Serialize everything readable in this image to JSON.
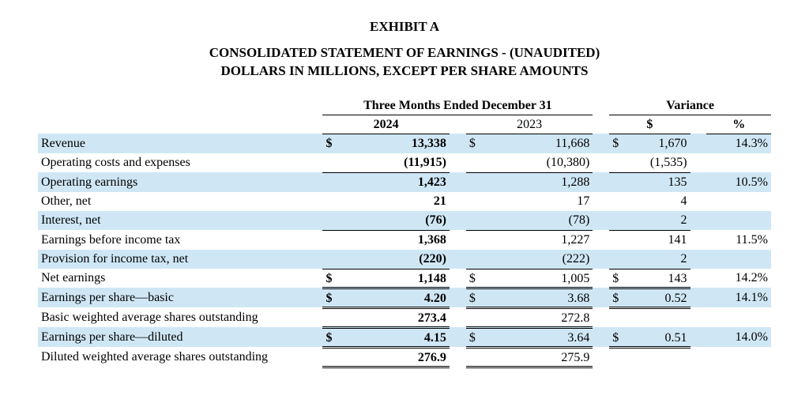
{
  "exhibit": "EXHIBIT A",
  "title_line1": "CONSOLIDATED STATEMENT OF EARNINGS - (UNAUDITED)",
  "title_line2": "DOLLARS IN MILLIONS, EXCEPT PER SHARE AMOUNTS",
  "group_header": "Three Months Ended December 31",
  "variance_header": "Variance",
  "col_2024": "2024",
  "col_2023": "2023",
  "col_var_dollar": "$",
  "col_var_pct": "%",
  "rows": {
    "revenue": {
      "label": "Revenue",
      "cur1": "$",
      "v1": "13,338",
      "cur2": "$",
      "v2": "11,668",
      "vcur": "$",
      "vd": "1,670",
      "vp": "14.3%"
    },
    "opcosts": {
      "label": "Operating costs and expenses",
      "cur1": "",
      "v1": "(11,915)",
      "cur2": "",
      "v2": "(10,380)",
      "vcur": "",
      "vd": "(1,535)",
      "vp": ""
    },
    "opearn": {
      "label": "Operating earnings",
      "cur1": "",
      "v1": "1,423",
      "cur2": "",
      "v2": "1,288",
      "vcur": "",
      "vd": "135",
      "vp": "10.5%"
    },
    "other": {
      "label": "Other, net",
      "cur1": "",
      "v1": "21",
      "cur2": "",
      "v2": "17",
      "vcur": "",
      "vd": "4",
      "vp": ""
    },
    "interest": {
      "label": "Interest, net",
      "cur1": "",
      "v1": "(76)",
      "cur2": "",
      "v2": "(78)",
      "vcur": "",
      "vd": "2",
      "vp": ""
    },
    "ebt": {
      "label": "Earnings before income tax",
      "cur1": "",
      "v1": "1,368",
      "cur2": "",
      "v2": "1,227",
      "vcur": "",
      "vd": "141",
      "vp": "11.5%"
    },
    "tax": {
      "label": "Provision for income tax, net",
      "cur1": "",
      "v1": "(220)",
      "cur2": "",
      "v2": "(222)",
      "vcur": "",
      "vd": "2",
      "vp": ""
    },
    "netearn": {
      "label": "Net earnings",
      "cur1": "$",
      "v1": "1,148",
      "cur2": "$",
      "v2": "1,005",
      "vcur": "$",
      "vd": "143",
      "vp": "14.2%"
    },
    "eps_basic": {
      "label": "Earnings per share—basic",
      "cur1": "$",
      "v1": "4.20",
      "cur2": "$",
      "v2": "3.68",
      "vcur": "$",
      "vd": "0.52",
      "vp": "14.1%"
    },
    "wavg_basic": {
      "label": "Basic weighted average shares outstanding",
      "cur1": "",
      "v1": "273.4",
      "cur2": "",
      "v2": "272.8",
      "vcur": "",
      "vd": "",
      "vp": ""
    },
    "eps_dil": {
      "label": "Earnings per share—diluted",
      "cur1": "$",
      "v1": "4.15",
      "cur2": "$",
      "v2": "3.64",
      "vcur": "$",
      "vd": "0.51",
      "vp": "14.0%"
    },
    "wavg_dil": {
      "label": "Diluted weighted average shares outstanding",
      "cur1": "",
      "v1": "276.9",
      "cur2": "",
      "v2": "275.9",
      "vcur": "",
      "vd": "",
      "vp": ""
    }
  },
  "style": {
    "stripe_color": "#cfe7f5",
    "font_family": "Times New Roman",
    "title_fontsize": 17,
    "body_fontsize": 16,
    "bold_col": "2024",
    "stripe_rows": [
      "revenue",
      "opearn",
      "interest",
      "tax",
      "eps_basic",
      "eps_dil"
    ],
    "subtotal_borders_after": [
      "opcosts",
      "interest",
      "tax"
    ],
    "double_underline_rows": [
      "netearn",
      "eps_basic",
      "wavg_basic",
      "eps_dil",
      "wavg_dil"
    ]
  }
}
